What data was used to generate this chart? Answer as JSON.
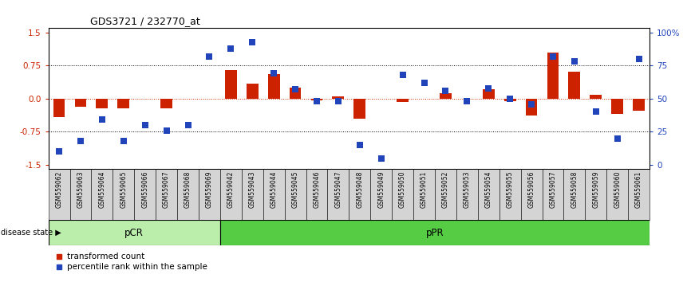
{
  "title": "GDS3721 / 232770_at",
  "samples": [
    "GSM559062",
    "GSM559063",
    "GSM559064",
    "GSM559065",
    "GSM559066",
    "GSM559067",
    "GSM559068",
    "GSM559069",
    "GSM559042",
    "GSM559043",
    "GSM559044",
    "GSM559045",
    "GSM559046",
    "GSM559047",
    "GSM559048",
    "GSM559049",
    "GSM559050",
    "GSM559051",
    "GSM559052",
    "GSM559053",
    "GSM559054",
    "GSM559055",
    "GSM559056",
    "GSM559057",
    "GSM559058",
    "GSM559059",
    "GSM559060",
    "GSM559061"
  ],
  "red_bars": [
    -0.42,
    -0.18,
    -0.22,
    -0.22,
    0.0,
    -0.22,
    0.0,
    0.0,
    0.65,
    0.35,
    0.55,
    0.25,
    -0.03,
    0.05,
    -0.45,
    0.0,
    -0.08,
    0.0,
    0.12,
    0.0,
    0.22,
    -0.05,
    -0.38,
    1.05,
    0.62,
    0.08,
    -0.35,
    -0.28
  ],
  "blue_dots": [
    10,
    18,
    34,
    18,
    30,
    26,
    30,
    82,
    88,
    93,
    69,
    57,
    48,
    48,
    15,
    5,
    68,
    62,
    56,
    48,
    58,
    50,
    46,
    82,
    78,
    40,
    20,
    80
  ],
  "pCR_count": 8,
  "pPR_count": 20,
  "ylim": [
    -1.6,
    1.6
  ],
  "yticks_left": [
    -1.5,
    -0.75,
    0.0,
    0.75,
    1.5
  ],
  "yticks_right": [
    0,
    25,
    50,
    75,
    100
  ],
  "red_color": "#cc2200",
  "blue_color": "#2244bb",
  "bar_width": 0.55,
  "dot_size": 28,
  "legend_red_label": "transformed count",
  "legend_blue_label": "percentile rank within the sample",
  "pCR_color": "#bbeeaa",
  "pPR_color": "#55cc44",
  "pCR_label": "pCR",
  "pPR_label": "pPR",
  "disease_state_label": "disease state"
}
